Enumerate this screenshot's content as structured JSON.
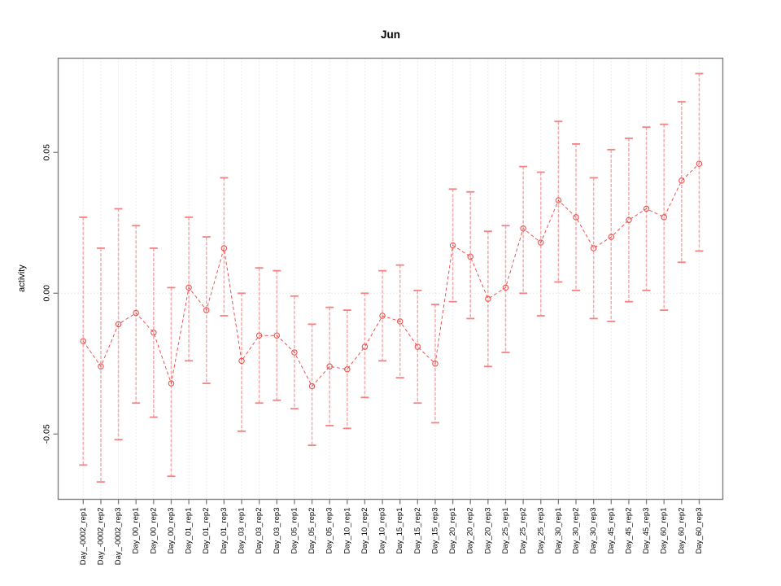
{
  "window": {
    "title": "Jun"
  },
  "chart_data": {
    "type": "line",
    "title": "Jun",
    "xlabel": "",
    "ylabel": "activity",
    "legend": "none",
    "grid": "dotted vertical gridline at each category; dotted horizontal line at y=0",
    "marker": "open-circle",
    "error_bars": true,
    "categories": [
      "Day_-0002_rep1",
      "Day_-0002_rep2",
      "Day_-0002_rep3",
      "Day_00_rep1",
      "Day_00_rep2",
      "Day_00_rep3",
      "Day_01_rep1",
      "Day_01_rep2",
      "Day_01_rep3",
      "Day_03_rep1",
      "Day_03_rep2",
      "Day_03_rep3",
      "Day_05_rep1",
      "Day_05_rep2",
      "Day_05_rep3",
      "Day_10_rep1",
      "Day_10_rep2",
      "Day_10_rep3",
      "Day_15_rep1",
      "Day_15_rep2",
      "Day_15_rep3",
      "Day_20_rep1",
      "Day_20_rep2",
      "Day_20_rep3",
      "Day_25_rep1",
      "Day_25_rep2",
      "Day_25_rep3",
      "Day_30_rep1",
      "Day_30_rep2",
      "Day_30_rep3",
      "Day_45_rep1",
      "Day_45_rep2",
      "Day_45_rep3",
      "Day_60_rep1",
      "Day_60_rep2",
      "Day_60_rep3"
    ],
    "series": [
      {
        "name": "activity",
        "values": [
          -0.017,
          -0.026,
          -0.011,
          -0.007,
          -0.014,
          -0.032,
          0.002,
          -0.006,
          0.016,
          -0.024,
          -0.015,
          -0.015,
          -0.021,
          -0.033,
          -0.026,
          -0.027,
          -0.019,
          -0.008,
          -0.01,
          -0.019,
          -0.025,
          0.017,
          0.013,
          -0.002,
          0.002,
          0.023,
          0.018,
          0.033,
          0.027,
          0.016,
          0.02,
          0.026,
          0.03,
          0.027,
          0.04,
          0.046
        ],
        "err_high": [
          0.027,
          0.016,
          0.03,
          0.024,
          0.016,
          0.002,
          0.027,
          0.02,
          0.041,
          0.0,
          0.009,
          0.008,
          -0.001,
          -0.011,
          -0.005,
          -0.006,
          0.0,
          0.008,
          0.01,
          0.001,
          -0.004,
          0.037,
          0.036,
          0.022,
          0.024,
          0.045,
          0.043,
          0.061,
          0.053,
          0.041,
          0.051,
          0.055,
          0.059,
          0.06,
          0.068,
          0.078
        ],
        "err_low": [
          -0.061,
          -0.067,
          -0.052,
          -0.039,
          -0.044,
          -0.065,
          -0.024,
          -0.032,
          -0.008,
          -0.049,
          -0.039,
          -0.038,
          -0.041,
          -0.054,
          -0.047,
          -0.048,
          -0.037,
          -0.024,
          -0.03,
          -0.039,
          -0.046,
          -0.003,
          -0.009,
          -0.026,
          -0.021,
          0.0,
          -0.008,
          0.004,
          0.001,
          -0.009,
          -0.01,
          -0.003,
          0.001,
          -0.006,
          0.011,
          0.015
        ]
      }
    ],
    "yticks": [
      -0.05,
      0.0,
      0.05
    ],
    "ytick_labels": [
      "-0.05",
      "0.00",
      "0.05"
    ],
    "ylim": [
      -0.0733,
      0.0835
    ],
    "colors": {
      "point": "#ef5350",
      "line": "#ef5350",
      "errorbar_line": "#f7a2a2",
      "errorbar_cap": "#f58282",
      "gridline": "#d7d7d7",
      "axis": "#808080",
      "text": "#000000",
      "background": "#ffffff"
    }
  }
}
